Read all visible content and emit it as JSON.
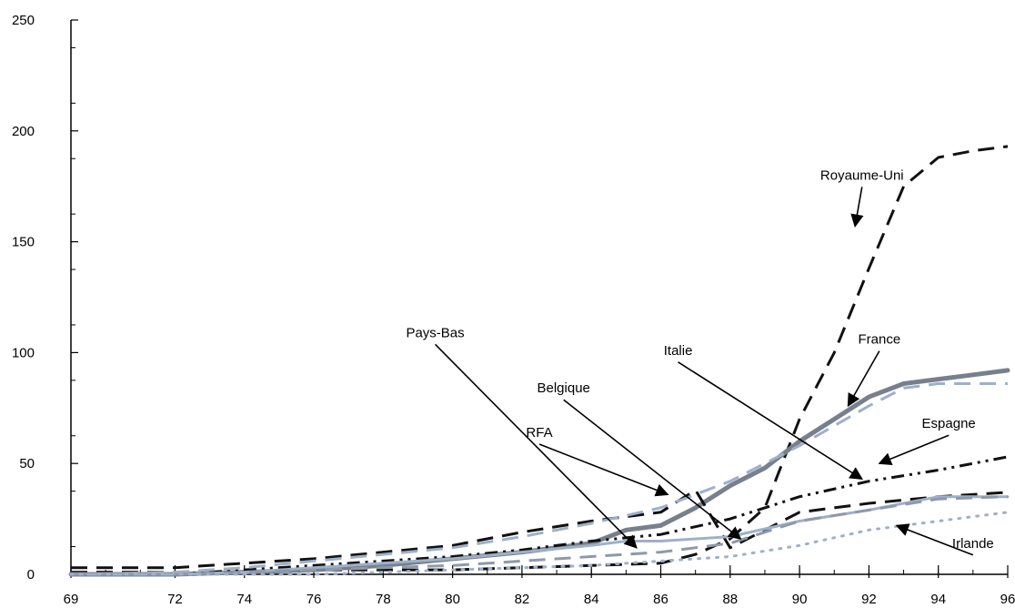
{
  "chart_data": {
    "type": "line",
    "title": "",
    "xlabel": "",
    "ylabel": "",
    "xlim": [
      69,
      96
    ],
    "ylim": [
      0,
      250
    ],
    "x_ticks": [
      "69",
      "72",
      "74",
      "76",
      "78",
      "80",
      "82",
      "84",
      "86",
      "88",
      "90",
      "92",
      "94",
      "96"
    ],
    "y_ticks": [
      "0",
      "50",
      "100",
      "150",
      "200",
      "250"
    ],
    "grid": false,
    "series": [
      {
        "name": "Royaume-Uni",
        "color": "#111111",
        "style": "dash",
        "points": [
          [
            69,
            1
          ],
          [
            72,
            1
          ],
          [
            74,
            1
          ],
          [
            76,
            2
          ],
          [
            78,
            2
          ],
          [
            80,
            2
          ],
          [
            82,
            3
          ],
          [
            84,
            4
          ],
          [
            86,
            5
          ],
          [
            87,
            9
          ],
          [
            88,
            16
          ],
          [
            89,
            30
          ],
          [
            90,
            70
          ],
          [
            91,
            100
          ],
          [
            92,
            138
          ],
          [
            93,
            175
          ],
          [
            94,
            188
          ],
          [
            95,
            191
          ],
          [
            96,
            193
          ]
        ]
      },
      {
        "name": "France",
        "color": "#77808c",
        "style": "solid-thick",
        "points": [
          [
            69,
            0
          ],
          [
            72,
            0
          ],
          [
            74,
            1
          ],
          [
            76,
            2
          ],
          [
            78,
            4
          ],
          [
            80,
            7
          ],
          [
            82,
            10
          ],
          [
            84,
            14
          ],
          [
            85,
            20
          ],
          [
            86,
            22
          ],
          [
            87,
            30
          ],
          [
            88,
            40
          ],
          [
            89,
            48
          ],
          [
            90,
            60
          ],
          [
            91,
            70
          ],
          [
            92,
            80
          ],
          [
            93,
            86
          ],
          [
            94,
            88
          ],
          [
            95,
            90
          ],
          [
            96,
            92
          ]
        ]
      },
      {
        "name": "Italie",
        "color": "#111111",
        "style": "dash",
        "points": [
          [
            69,
            3
          ],
          [
            72,
            3
          ],
          [
            74,
            5
          ],
          [
            76,
            7
          ],
          [
            78,
            10
          ],
          [
            80,
            13
          ],
          [
            82,
            19
          ],
          [
            84,
            24
          ],
          [
            86,
            28
          ],
          [
            87,
            38
          ],
          [
            88,
            12
          ],
          [
            89,
            20
          ],
          [
            90,
            28
          ],
          [
            92,
            32
          ],
          [
            94,
            35
          ],
          [
            96,
            37
          ]
        ]
      },
      {
        "name": "Espagne",
        "color": "#111111",
        "style": "dashdotdot",
        "points": [
          [
            69,
            0
          ],
          [
            72,
            0
          ],
          [
            74,
            2
          ],
          [
            76,
            4
          ],
          [
            78,
            6
          ],
          [
            80,
            8
          ],
          [
            82,
            11
          ],
          [
            84,
            15
          ],
          [
            86,
            18
          ],
          [
            88,
            25
          ],
          [
            90,
            35
          ],
          [
            92,
            42
          ],
          [
            94,
            47
          ],
          [
            96,
            53
          ]
        ]
      },
      {
        "name": "Belgique",
        "color": "#9fb0c8",
        "style": "solid",
        "points": [
          [
            69,
            0
          ],
          [
            72,
            0
          ],
          [
            74,
            1
          ],
          [
            76,
            3
          ],
          [
            78,
            5
          ],
          [
            80,
            7
          ],
          [
            82,
            10
          ],
          [
            84,
            13
          ],
          [
            85,
            15
          ],
          [
            86,
            15
          ],
          [
            88,
            17
          ],
          [
            90,
            24
          ],
          [
            92,
            29
          ],
          [
            94,
            35
          ],
          [
            96,
            35
          ]
        ]
      },
      {
        "name": "Pays-Bas",
        "color": "#9fb0c8",
        "style": "dash",
        "points": [
          [
            69,
            0
          ],
          [
            72,
            1
          ],
          [
            74,
            3
          ],
          [
            76,
            6
          ],
          [
            78,
            9
          ],
          [
            80,
            12
          ],
          [
            82,
            17
          ],
          [
            84,
            23
          ],
          [
            86,
            30
          ],
          [
            88,
            42
          ],
          [
            90,
            58
          ],
          [
            92,
            76
          ],
          [
            93,
            84
          ],
          [
            94,
            86
          ],
          [
            96,
            86
          ]
        ]
      },
      {
        "name": "RFA",
        "color": "#8e99aa",
        "style": "dash",
        "points": [
          [
            69,
            0
          ],
          [
            72,
            0
          ],
          [
            74,
            1
          ],
          [
            76,
            2
          ],
          [
            78,
            3
          ],
          [
            80,
            4
          ],
          [
            82,
            6
          ],
          [
            84,
            8
          ],
          [
            86,
            10
          ],
          [
            88,
            14
          ],
          [
            90,
            24
          ],
          [
            92,
            29
          ],
          [
            94,
            34
          ],
          [
            96,
            35
          ]
        ]
      },
      {
        "name": "Irlande",
        "color": "#9fb0c8",
        "style": "dot",
        "points": [
          [
            69,
            0
          ],
          [
            72,
            0
          ],
          [
            74,
            0
          ],
          [
            76,
            0
          ],
          [
            78,
            1
          ],
          [
            80,
            2
          ],
          [
            82,
            3
          ],
          [
            84,
            4
          ],
          [
            86,
            6
          ],
          [
            88,
            8
          ],
          [
            90,
            13
          ],
          [
            92,
            20
          ],
          [
            94,
            24
          ],
          [
            96,
            28
          ]
        ]
      }
    ],
    "annotations": [
      {
        "text": "Royaume-Uni",
        "x": 91.8,
        "y": 178,
        "arrow_to": [
          91.6,
          157
        ]
      },
      {
        "text": "France",
        "x": 92.3,
        "y": 104,
        "arrow_to": [
          91.4,
          76
        ]
      },
      {
        "text": "Italie",
        "x": 86.5,
        "y": 99,
        "arrow_to": [
          91.8,
          43
        ]
      },
      {
        "text": "Espagne",
        "x": 94.3,
        "y": 66,
        "arrow_to": [
          92.3,
          50
        ]
      },
      {
        "text": "Belgique",
        "x": 83.2,
        "y": 82,
        "arrow_to": [
          88.3,
          16
        ]
      },
      {
        "text": "Pays-Bas",
        "x": 79.5,
        "y": 107,
        "arrow_to": [
          85.3,
          12
        ]
      },
      {
        "text": "RFA",
        "x": 82.5,
        "y": 62,
        "arrow_to": [
          86.2,
          36
        ]
      },
      {
        "text": "Irlande",
        "x": 95.0,
        "y": 12,
        "arrow_to": [
          92.8,
          22
        ]
      }
    ]
  }
}
